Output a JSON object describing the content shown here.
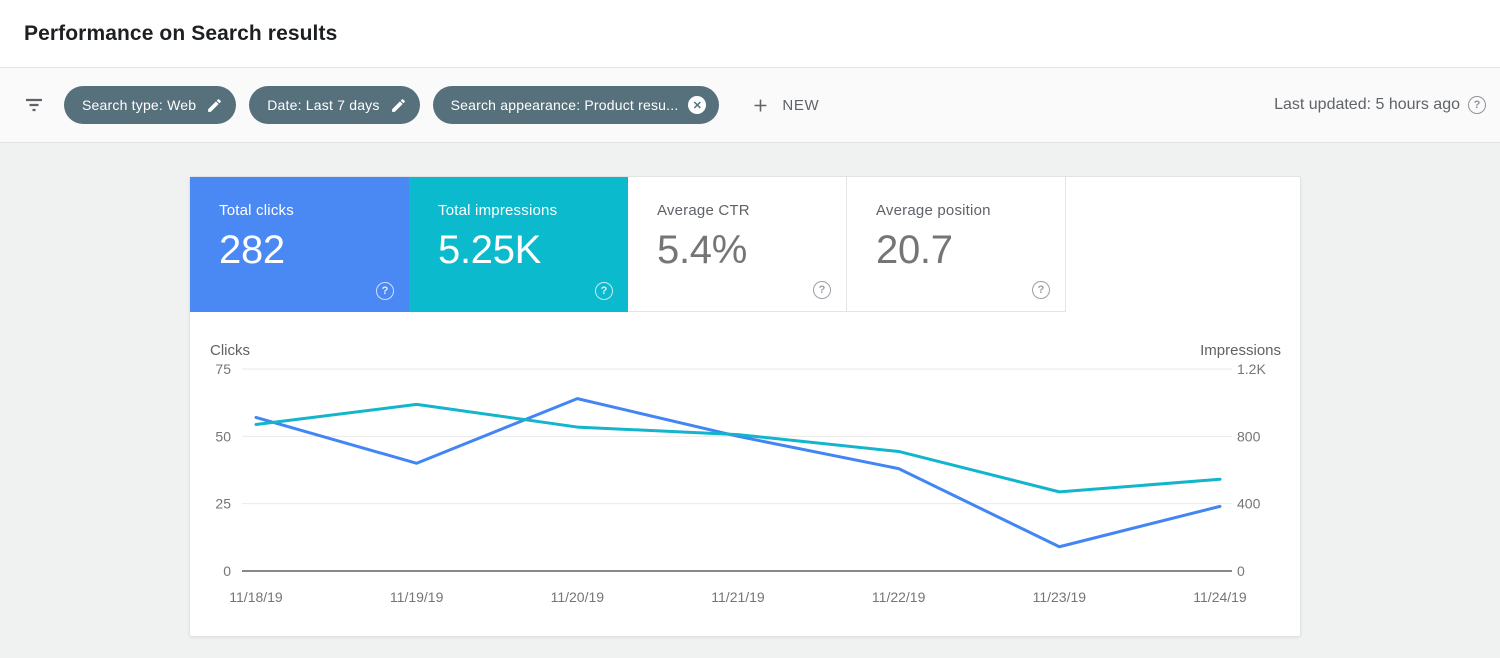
{
  "header": {
    "title": "Performance on Search results"
  },
  "filter_bar": {
    "chips": [
      {
        "label": "Search type: Web",
        "action": "edit"
      },
      {
        "label": "Date: Last 7 days",
        "action": "edit"
      },
      {
        "label": "Search appearance: Product resu...",
        "action": "remove"
      }
    ],
    "new_label": "NEW",
    "last_updated": "Last updated: 5 hours ago"
  },
  "metrics": [
    {
      "label": "Total clicks",
      "value": "282",
      "selected": true,
      "color": "#4a88f4"
    },
    {
      "label": "Total impressions",
      "value": "5.25K",
      "selected": true,
      "color": "#0cbacd"
    },
    {
      "label": "Average CTR",
      "value": "5.4%",
      "selected": false
    },
    {
      "label": "Average position",
      "value": "20.7",
      "selected": false
    }
  ],
  "chart_data": {
    "type": "line",
    "categories": [
      "11/18/19",
      "11/19/19",
      "11/20/19",
      "11/21/19",
      "11/22/19",
      "11/23/19",
      "11/24/19"
    ],
    "series": [
      {
        "name": "Clicks",
        "axis": "left",
        "color": "#4285f4",
        "values": [
          57,
          40,
          64,
          50,
          38,
          9,
          24
        ]
      },
      {
        "name": "Impressions",
        "axis": "right",
        "color": "#12b5cb",
        "values": [
          870,
          990,
          855,
          810,
          710,
          470,
          545
        ]
      }
    ],
    "axes": {
      "left": {
        "title": "Clicks",
        "max": 75,
        "min": 0,
        "ticks": [
          "75",
          "50",
          "25",
          "0"
        ]
      },
      "right": {
        "title": "Impressions",
        "max": 1200,
        "min": 0,
        "ticks": [
          "1.2K",
          "800",
          "400",
          "0"
        ]
      }
    },
    "grid": "horizontal",
    "legend": "none"
  },
  "colors": {
    "chip_background": "#56707c",
    "clicks_accent": "#4285f4",
    "impressions_accent": "#12b5cb"
  }
}
